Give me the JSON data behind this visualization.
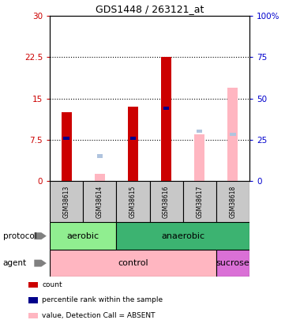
{
  "title": "GDS1448 / 263121_at",
  "samples": [
    "GSM38613",
    "GSM38614",
    "GSM38615",
    "GSM38616",
    "GSM38617",
    "GSM38618"
  ],
  "count_values": [
    12.5,
    null,
    13.5,
    22.5,
    null,
    null
  ],
  "percentile_rank": [
    7.8,
    null,
    7.8,
    13.2,
    null,
    null
  ],
  "absent_value": [
    null,
    1.2,
    null,
    null,
    8.5,
    17.0
  ],
  "absent_rank": [
    null,
    4.5,
    null,
    null,
    9.0,
    8.5
  ],
  "ylim_left": [
    0,
    30
  ],
  "ylim_right": [
    0,
    100
  ],
  "yticks_left": [
    0,
    7.5,
    15,
    22.5,
    30
  ],
  "yticks_right": [
    0,
    25,
    50,
    75,
    100
  ],
  "count_color": "#CC0000",
  "rank_color": "#00008B",
  "absent_val_color": "#FFB6C1",
  "absent_rank_color": "#B0C4DE",
  "left_tick_color": "#CC0000",
  "right_tick_color": "#0000CD",
  "sample_box_color": "#C8C8C8",
  "protocol_aerobic_color": "#90EE90",
  "protocol_anaerobic_color": "#3CB371",
  "agent_control_color": "#FFB6C1",
  "agent_sucrose_color": "#DA70D6",
  "legend_items": [
    [
      "count",
      "#CC0000"
    ],
    [
      "percentile rank within the sample",
      "#00008B"
    ],
    [
      "value, Detection Call = ABSENT",
      "#FFB6C1"
    ],
    [
      "rank, Detection Call = ABSENT",
      "#B0C4DE"
    ]
  ],
  "bar_width": 0.3,
  "rank_bar_width": 0.18
}
